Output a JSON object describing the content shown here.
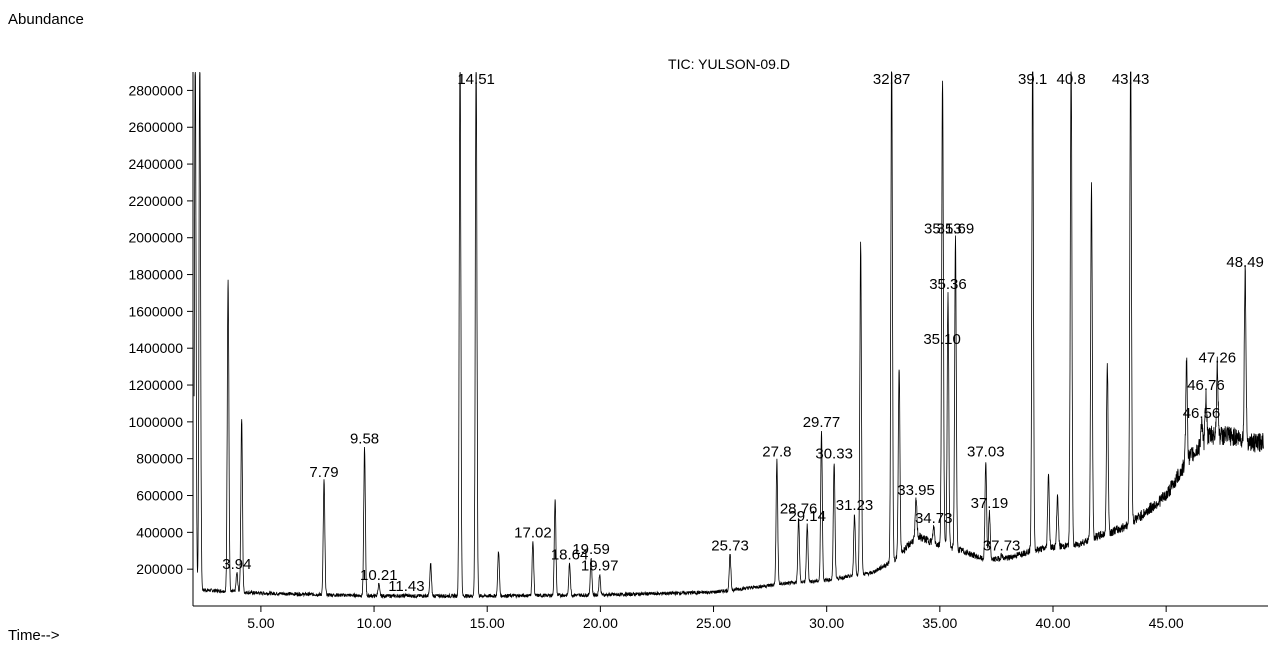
{
  "chart_data": {
    "type": "line",
    "title": "TIC: YULSON-09.D",
    "ylabel": "Abundance",
    "xlabel": "Time-->",
    "xlim": [
      2.0,
      49.5
    ],
    "ylim": [
      0,
      3000000
    ],
    "x_ticks": [
      "5.00",
      "10.00",
      "15.00",
      "20.00",
      "25.00",
      "30.00",
      "35.00",
      "40.00",
      "45.00"
    ],
    "y_ticks": [
      "200000",
      "400000",
      "600000",
      "800000",
      "1000000",
      "1200000",
      "1400000",
      "1600000",
      "1800000",
      "2000000",
      "2200000",
      "2400000",
      "2600000",
      "2800000"
    ],
    "baseline": [
      [
        2.0,
        90000
      ],
      [
        5.0,
        70000
      ],
      [
        10.0,
        55000
      ],
      [
        15.0,
        55000
      ],
      [
        20.0,
        60000
      ],
      [
        25.0,
        75000
      ],
      [
        28.0,
        120000
      ],
      [
        30.0,
        140000
      ],
      [
        32.0,
        180000
      ],
      [
        33.0,
        250000
      ],
      [
        34.0,
        380000
      ],
      [
        35.0,
        330000
      ],
      [
        36.0,
        300000
      ],
      [
        37.0,
        250000
      ],
      [
        38.0,
        260000
      ],
      [
        39.0,
        300000
      ],
      [
        40.0,
        320000
      ],
      [
        41.0,
        330000
      ],
      [
        42.0,
        380000
      ],
      [
        43.0,
        420000
      ],
      [
        44.0,
        500000
      ],
      [
        45.0,
        600000
      ],
      [
        46.0,
        800000
      ],
      [
        47.0,
        930000
      ],
      [
        48.0,
        920000
      ],
      [
        49.0,
        880000
      ],
      [
        49.3,
        900000
      ]
    ],
    "peaks": [
      {
        "rt": 2.1,
        "abundance": 3000000
      },
      {
        "rt": 2.3,
        "abundance": 3000000
      },
      {
        "rt": 3.55,
        "abundance": 1780000
      },
      {
        "rt": 3.94,
        "abundance": 180000,
        "label": "3.94"
      },
      {
        "rt": 4.15,
        "abundance": 1020000
      },
      {
        "rt": 7.79,
        "abundance": 680000,
        "label": "7.79"
      },
      {
        "rt": 9.58,
        "abundance": 860000,
        "label": "9.58"
      },
      {
        "rt": 10.21,
        "abundance": 120000,
        "label": "10.21"
      },
      {
        "rt": 11.43,
        "abundance": 60000,
        "label": "11.43"
      },
      {
        "rt": 12.5,
        "abundance": 230000
      },
      {
        "rt": 13.8,
        "abundance": 3000000
      },
      {
        "rt": 14.51,
        "abundance": 3000000,
        "label": "14.51"
      },
      {
        "rt": 15.5,
        "abundance": 300000
      },
      {
        "rt": 17.02,
        "abundance": 350000,
        "label": "17.02"
      },
      {
        "rt": 18.0,
        "abundance": 580000
      },
      {
        "rt": 18.64,
        "abundance": 230000,
        "label": "18.64"
      },
      {
        "rt": 19.59,
        "abundance": 260000,
        "label": "19.59"
      },
      {
        "rt": 19.97,
        "abundance": 170000,
        "label": "19.97"
      },
      {
        "rt": 25.73,
        "abundance": 280000,
        "label": "25.73"
      },
      {
        "rt": 27.8,
        "abundance": 790000,
        "label": "27.8"
      },
      {
        "rt": 28.76,
        "abundance": 480000,
        "label": "28.76"
      },
      {
        "rt": 29.14,
        "abundance": 440000,
        "label": "29.14"
      },
      {
        "rt": 29.77,
        "abundance": 950000,
        "label": "29.77"
      },
      {
        "rt": 30.33,
        "abundance": 780000,
        "label": "30.33"
      },
      {
        "rt": 31.23,
        "abundance": 500000,
        "label": "31.23"
      },
      {
        "rt": 31.5,
        "abundance": 1970000
      },
      {
        "rt": 32.87,
        "abundance": 3000000,
        "label": "32.87"
      },
      {
        "rt": 33.2,
        "abundance": 1300000
      },
      {
        "rt": 33.95,
        "abundance": 580000,
        "label": "33.95"
      },
      {
        "rt": 34.73,
        "abundance": 430000,
        "label": "34.73"
      },
      {
        "rt": 35.1,
        "abundance": 1400000,
        "label": "35.10"
      },
      {
        "rt": 35.13,
        "abundance": 2000000,
        "label": "35.13"
      },
      {
        "rt": 35.36,
        "abundance": 1700000,
        "label": "35.36"
      },
      {
        "rt": 35.69,
        "abundance": 2000000,
        "label": "35.69"
      },
      {
        "rt": 37.03,
        "abundance": 790000,
        "label": "37.03"
      },
      {
        "rt": 37.19,
        "abundance": 510000,
        "label": "37.19"
      },
      {
        "rt": 37.73,
        "abundance": 280000,
        "label": "37.73"
      },
      {
        "rt": 39.1,
        "abundance": 3000000,
        "label": "39.1"
      },
      {
        "rt": 39.8,
        "abundance": 720000
      },
      {
        "rt": 40.2,
        "abundance": 600000
      },
      {
        "rt": 40.8,
        "abundance": 3000000,
        "label": "40.8"
      },
      {
        "rt": 41.7,
        "abundance": 2280000
      },
      {
        "rt": 42.4,
        "abundance": 1320000
      },
      {
        "rt": 43.43,
        "abundance": 3000000,
        "label": "43.43"
      },
      {
        "rt": 45.9,
        "abundance": 1330000
      },
      {
        "rt": 46.56,
        "abundance": 1000000,
        "label": "46.56"
      },
      {
        "rt": 46.76,
        "abundance": 1150000,
        "label": "46.76"
      },
      {
        "rt": 47.26,
        "abundance": 1300000,
        "label": "47.26"
      },
      {
        "rt": 48.49,
        "abundance": 1820000,
        "label": "48.49"
      }
    ]
  }
}
